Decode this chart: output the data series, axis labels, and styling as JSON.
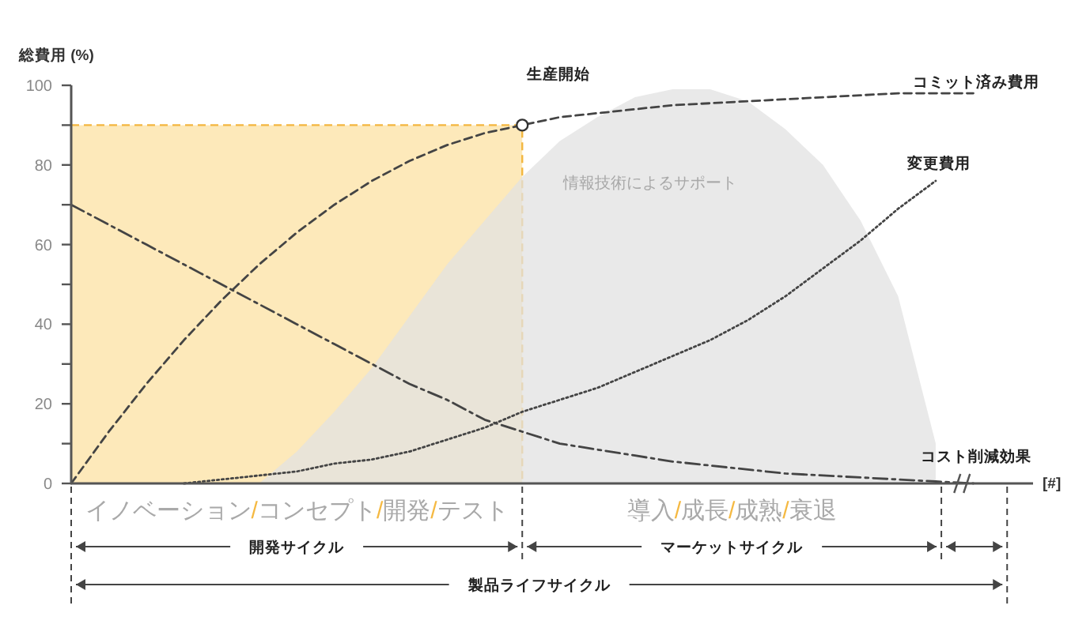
{
  "chart_data": {
    "type": "line",
    "ylabel": "総費用 (%)",
    "xlabel": "[#]",
    "categories": [
      null,
      null,
      null,
      null,
      null,
      null,
      null,
      null,
      null,
      null,
      null,
      null,
      null,
      null,
      null,
      null,
      null,
      null,
      null,
      null,
      null,
      null,
      null,
      null,
      null,
      null
    ],
    "ylim": [
      0,
      100
    ],
    "yticks": [
      0,
      {
        "value": 10,
        "label": null
      },
      20,
      {
        "value": 30,
        "label": null
      },
      40,
      {
        "value": 50,
        "label": null
      },
      60,
      {
        "value": 70,
        "label": null
      },
      80,
      {
        "value": 90,
        "label": null
      },
      100
    ],
    "series": [
      {
        "type": "area",
        "color": "#fde9ba",
        "line_style": "dashed",
        "values": [
          90,
          90,
          90,
          90,
          90,
          90,
          90,
          90,
          90,
          90,
          90,
          90,
          90,
          null,
          null,
          null,
          null,
          null,
          null,
          null,
          null,
          null,
          null,
          null,
          null,
          null
        ]
      },
      {
        "type": "area",
        "name": "情報技術によるサポート",
        "color": "#e2e2e2",
        "values": [
          null,
          null,
          null,
          null,
          null,
          0,
          8,
          18,
          29,
          42,
          55,
          66,
          77,
          86,
          92,
          97,
          99,
          99,
          96,
          89,
          80,
          66,
          47,
          10,
          null,
          null
        ]
      },
      {
        "name": "コミット済み費用",
        "color": "#444444",
        "line_style": "dashed",
        "values": [
          0,
          13,
          25,
          36,
          46,
          55,
          63,
          70,
          76,
          81,
          85,
          88,
          90,
          92,
          93,
          94,
          95,
          95.5,
          96,
          96.5,
          97,
          97.5,
          98,
          98,
          98,
          null
        ]
      },
      {
        "name": "変更費用",
        "color": "#444444",
        "line_style": "dotted",
        "values": [
          null,
          null,
          null,
          0,
          1,
          2,
          3,
          5,
          6,
          8,
          11,
          14,
          18,
          21,
          24,
          28,
          32,
          36,
          41,
          47,
          54,
          61,
          69,
          76,
          null,
          null
        ]
      },
      {
        "name": "コスト削減効果",
        "color": "#444444",
        "line_style": "dashdot",
        "values": [
          70,
          65,
          60,
          55,
          50,
          45,
          40,
          35,
          30,
          25,
          21,
          16,
          13,
          10,
          8.5,
          7,
          5.5,
          4.5,
          3.5,
          2.5,
          2,
          1.5,
          1,
          0.5,
          0,
          null
        ]
      }
    ],
    "annotations": [
      {
        "text": "生産開始",
        "y": 90
      },
      "イノベーション/コンセプト/開発/テスト",
      "導入/成長/成熟/衰退",
      "開発サイクル",
      "マーケットサイクル",
      "製品ライフサイクル"
    ],
    "grid": false
  }
}
